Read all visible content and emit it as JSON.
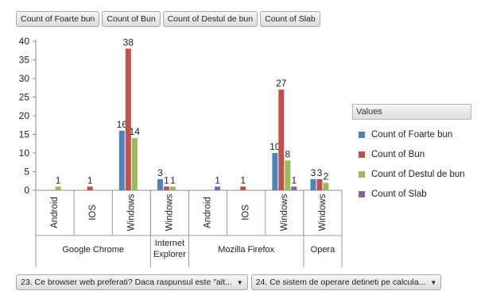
{
  "pivot_fields": [
    "Count of Foarte bun",
    "Count of Bun",
    "Count of Destul de bun",
    "Count of Slab"
  ],
  "legend": {
    "header": "Values",
    "items": [
      {
        "label": "Count of Foarte bun",
        "color": "#4f81bd"
      },
      {
        "label": "Count of Bun",
        "color": "#c0504d"
      },
      {
        "label": "Count of Destul de bun",
        "color": "#9bbb59"
      },
      {
        "label": "Count of Slab",
        "color": "#8064a2"
      }
    ]
  },
  "row_fields": [
    {
      "label": "23. Ce browser web preferati? Daca raspunsul este \"alt...",
      "icon": "dropdown-arrow-icon"
    },
    {
      "label": "24. Ce sistem de operare detineti pe calcula...",
      "icon": "dropdown-arrow-icon"
    }
  ],
  "chart_data": {
    "type": "bar",
    "ylim": [
      0,
      40
    ],
    "yticks": [
      0,
      5,
      10,
      15,
      20,
      25,
      30,
      35,
      40
    ],
    "categories": [
      {
        "group": "Google Chrome",
        "os": "Android"
      },
      {
        "group": "Google Chrome",
        "os": "IOS"
      },
      {
        "group": "Google Chrome",
        "os": "Windows"
      },
      {
        "group": "Internet Explorer",
        "os": "Windows"
      },
      {
        "group": "Mozilla Firefox",
        "os": "Android"
      },
      {
        "group": "Mozilla Firefox",
        "os": "IOS"
      },
      {
        "group": "Mozilla Firefox",
        "os": "Windows"
      },
      {
        "group": "Opera",
        "os": "Windows"
      }
    ],
    "groups": [
      {
        "label": "Google Chrome",
        "span": 3
      },
      {
        "label": "Internet Explorer",
        "span": 1
      },
      {
        "label": "Mozilla Firefox",
        "span": 3
      },
      {
        "label": "Opera",
        "span": 1
      }
    ],
    "series": [
      {
        "name": "Count of Foarte bun",
        "color": "#4f81bd",
        "values": [
          null,
          null,
          16,
          3,
          null,
          null,
          10,
          3
        ]
      },
      {
        "name": "Count of Bun",
        "color": "#c0504d",
        "values": [
          null,
          1,
          38,
          1,
          null,
          1,
          27,
          3
        ]
      },
      {
        "name": "Count of Destul de bun",
        "color": "#9bbb59",
        "values": [
          1,
          null,
          14,
          1,
          null,
          null,
          8,
          2
        ]
      },
      {
        "name": "Count of Slab",
        "color": "#8064a2",
        "values": [
          null,
          null,
          null,
          null,
          1,
          null,
          1,
          null
        ]
      }
    ]
  }
}
